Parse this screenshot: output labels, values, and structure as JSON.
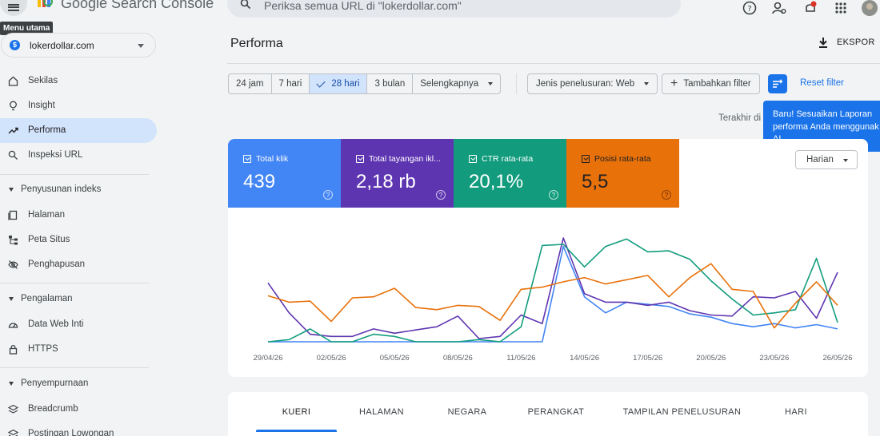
{
  "app": {
    "brand": "Google Search Console",
    "search_placeholder": "Periksa semua URL di \"lokerdollar.com\"",
    "menu_tooltip": "Menu utama"
  },
  "sidebar": {
    "property": "lokerdollar.com",
    "items": [
      {
        "label": "Sekilas",
        "icon": "home-icon"
      },
      {
        "label": "Insight",
        "icon": "lightbulb-icon"
      },
      {
        "label": "Performa",
        "icon": "trending-up-icon",
        "active": true
      },
      {
        "label": "Inspeksi URL",
        "icon": "search-icon"
      }
    ],
    "sections": [
      {
        "label": "Penyusunan indeks",
        "items": [
          "Halaman",
          "Peta Situs",
          "Penghapusan"
        ]
      },
      {
        "label": "Pengalaman",
        "items": [
          "Data Web Inti",
          "HTTPS"
        ]
      },
      {
        "label": "Penyempurnaan",
        "items": [
          "Breadcrumb",
          "Postingan Lowongan"
        ]
      }
    ]
  },
  "main": {
    "title": "Performa",
    "export_label": "EKSPOR",
    "date_chips": [
      "24 jam",
      "7 hari",
      "28 hari",
      "3 bulan",
      "Selengkapnya"
    ],
    "selected_chip": "28 hari",
    "search_type_filter": "Jenis penelusuran: Web",
    "add_filter": "Tambahkan filter",
    "reset_filter": "Reset filter",
    "popover": [
      "Baru! Sesuaikan Laporan",
      "performa Anda menggunak",
      "AI"
    ],
    "last_updated": "Terakhir di",
    "granularity": "Harian"
  },
  "metrics": [
    {
      "label": "Total klik",
      "value": "439",
      "color": "#4285f4"
    },
    {
      "label": "Total tayangan ikl...",
      "value": "2,18 rb",
      "color": "#5e35b1"
    },
    {
      "label": "CTR rata-rata",
      "value": "20,1%",
      "color": "#129c7d"
    },
    {
      "label": "Posisi rata-rata",
      "value": "5,5",
      "color": "#e8710a"
    }
  ],
  "tabs": [
    "KUERI",
    "HALAMAN",
    "NEGARA",
    "PERANGKAT",
    "TAMPILAN PENELUSURAN",
    "HARI"
  ],
  "chart_data": {
    "type": "line",
    "x_ticks": [
      "29/04/26",
      "02/05/26",
      "05/05/26",
      "08/05/26",
      "11/05/26",
      "14/05/26",
      "17/05/26",
      "20/05/26",
      "23/05/26",
      "26/05/26"
    ],
    "x": [
      "29/04/26",
      "30/04/26",
      "01/05/26",
      "02/05/26",
      "03/05/26",
      "04/05/26",
      "05/05/26",
      "06/05/26",
      "07/05/26",
      "08/05/26",
      "09/05/26",
      "10/05/26",
      "11/05/26",
      "12/05/26",
      "13/05/26",
      "14/05/26",
      "15/05/26",
      "16/05/26",
      "17/05/26",
      "18/05/26",
      "19/05/26",
      "20/05/26",
      "21/05/26",
      "22/05/26",
      "23/05/26",
      "24/05/26",
      "25/05/26",
      "26/05/26"
    ],
    "grid": false,
    "series": [
      {
        "name": "Total klik",
        "color": "#4285f4",
        "values": [
          0.03,
          0.03,
          0.03,
          0.03,
          0.03,
          0.03,
          0.03,
          0.03,
          0.03,
          0.03,
          0.03,
          0.03,
          0.03,
          0.03,
          0.92,
          0.45,
          0.3,
          0.4,
          0.38,
          0.36,
          0.29,
          0.26,
          0.2,
          0.17,
          0.2,
          0.16,
          0.19,
          0.15
        ]
      },
      {
        "name": "Total tayangan iklan",
        "color": "#5e35b1",
        "values": [
          0.58,
          0.3,
          0.1,
          0.08,
          0.08,
          0.15,
          0.11,
          0.14,
          0.17,
          0.27,
          0.06,
          0.08,
          0.28,
          0.2,
          1.0,
          0.48,
          0.4,
          0.4,
          0.37,
          0.4,
          0.32,
          0.28,
          0.27,
          0.45,
          0.44,
          0.5,
          0.25,
          0.68
        ]
      },
      {
        "name": "CTR rata-rata",
        "color": "#129c7d",
        "values": [
          0.03,
          0.05,
          0.15,
          0.03,
          0.03,
          0.1,
          0.08,
          0.03,
          0.03,
          0.03,
          0.05,
          0.03,
          0.17,
          0.93,
          0.94,
          0.73,
          0.92,
          0.99,
          0.87,
          0.88,
          0.8,
          0.6,
          0.43,
          0.28,
          0.3,
          0.33,
          0.81,
          0.21
        ]
      },
      {
        "name": "Posisi rata-rata",
        "color": "#e8710a",
        "values": [
          0.46,
          0.4,
          0.41,
          0.22,
          0.44,
          0.45,
          0.53,
          0.35,
          0.33,
          0.37,
          0.36,
          0.23,
          0.52,
          0.54,
          0.59,
          0.63,
          0.57,
          0.61,
          0.65,
          0.45,
          0.63,
          0.76,
          0.52,
          0.5,
          0.16,
          0.39,
          0.59,
          0.37
        ]
      }
    ]
  }
}
